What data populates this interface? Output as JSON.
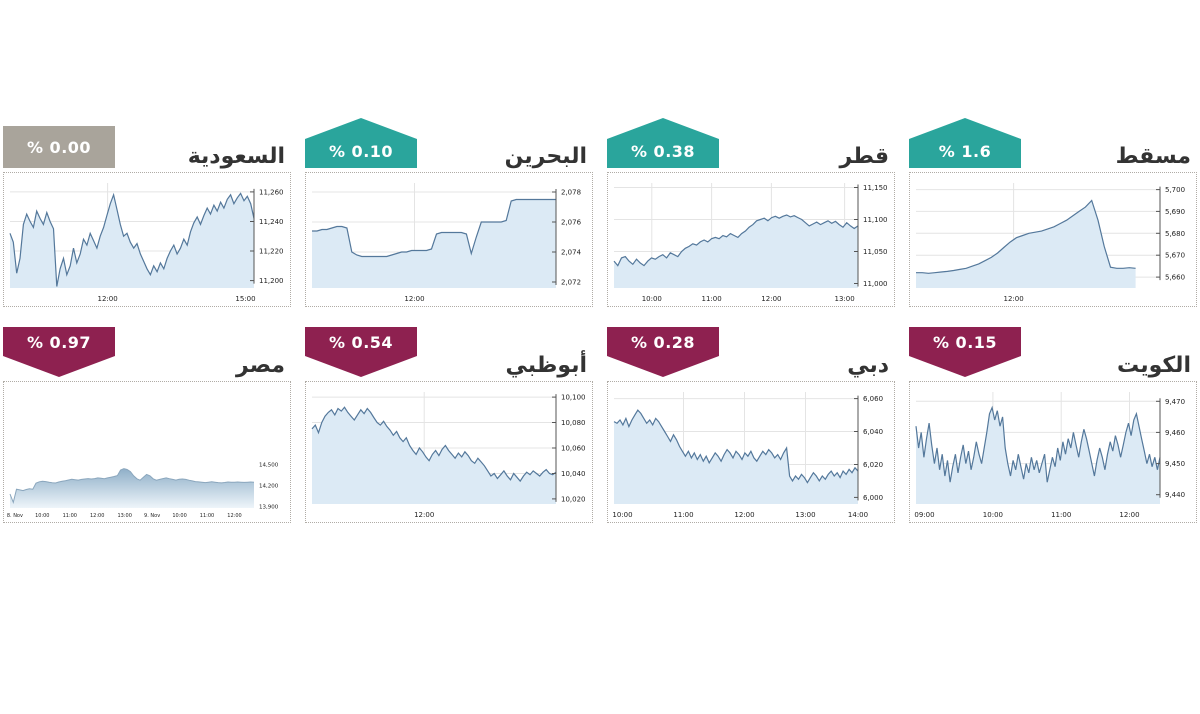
{
  "page": {
    "background": "#ffffff"
  },
  "colors": {
    "up": "#2aa59c",
    "down": "#8e2150",
    "flat": "#a9a49b",
    "line": "#54789b",
    "fill": "#dceaf5",
    "grid": "#e4e4e4",
    "axis": "#555555",
    "tick_label": "#222222",
    "title": "#333333",
    "mountain_line": "#8aa6bd",
    "mountain_fill_top": "#8fafc8",
    "mountain_fill_bottom": "#eef5fa"
  },
  "chart_data": [
    {
      "id": "saudi",
      "title": "السعودية",
      "badge_label": "% 0.00",
      "direction": "flat",
      "type": "area",
      "legend": "none",
      "grid": true,
      "ylim": [
        11195,
        11266
      ],
      "yticks": [
        11260,
        11240,
        11220,
        11200
      ],
      "ytick_labels": [
        "11,260",
        "11,240",
        "11,220",
        "11,200"
      ],
      "xticks": [
        {
          "label": "12:00",
          "pos": 0.4
        },
        {
          "label": "15:00",
          "pos": 0.965
        }
      ],
      "values": [
        11232,
        11226,
        11205,
        11215,
        11238,
        11245,
        11240,
        11236,
        11247,
        11242,
        11238,
        11246,
        11240,
        11235,
        11196,
        11208,
        11215,
        11204,
        11210,
        11222,
        11212,
        11218,
        11228,
        11224,
        11232,
        11227,
        11222,
        11230,
        11236,
        11244,
        11252,
        11258,
        11248,
        11238,
        11230,
        11232,
        11226,
        11222,
        11225,
        11218,
        11213,
        11208,
        11204,
        11210,
        11206,
        11212,
        11208,
        11215,
        11220,
        11224,
        11218,
        11222,
        11228,
        11224,
        11233,
        11239,
        11243,
        11238,
        11244,
        11249,
        11245,
        11251,
        11247,
        11253,
        11249,
        11255,
        11258,
        11252,
        11256,
        11259,
        11254,
        11257,
        11252,
        11242
      ]
    },
    {
      "id": "bahrain",
      "title": "البحرين",
      "badge_label": "% 0.10",
      "direction": "up",
      "type": "area",
      "legend": "none",
      "grid": true,
      "ylim": [
        2071.6,
        2078.6
      ],
      "yticks": [
        2078,
        2076,
        2074,
        2072
      ],
      "ytick_labels": [
        "2,078",
        "2,076",
        "2,074",
        "2,072"
      ],
      "xticks": [
        {
          "label": "12:00",
          "pos": 0.42
        }
      ],
      "values": [
        2075.4,
        2075.4,
        2075.5,
        2075.5,
        2075.6,
        2075.7,
        2075.7,
        2075.6,
        2074.0,
        2073.8,
        2073.7,
        2073.7,
        2073.7,
        2073.7,
        2073.7,
        2073.7,
        2073.8,
        2073.9,
        2074.0,
        2074.0,
        2074.1,
        2074.1,
        2074.1,
        2074.1,
        2074.2,
        2075.2,
        2075.3,
        2075.3,
        2075.3,
        2075.3,
        2075.3,
        2075.2,
        2073.9,
        2075.0,
        2076.0,
        2076.0,
        2076.0,
        2076.0,
        2076.0,
        2076.1,
        2077.4,
        2077.5,
        2077.5,
        2077.5,
        2077.5,
        2077.5,
        2077.5,
        2077.5,
        2077.5,
        2077.5
      ]
    },
    {
      "id": "qatar",
      "title": "قطر",
      "badge_label": "% 0.38",
      "direction": "up",
      "type": "area",
      "legend": "none",
      "grid": true,
      "ylim": [
        10993,
        11157
      ],
      "yticks": [
        11150,
        11100,
        11050,
        11000
      ],
      "ytick_labels": [
        "11,150",
        "11,100",
        "11,050",
        "11,000"
      ],
      "xticks": [
        {
          "label": "10:00",
          "pos": 0.155
        },
        {
          "label": "11:00",
          "pos": 0.4
        },
        {
          "label": "12:00",
          "pos": 0.645
        },
        {
          "label": "13:00",
          "pos": 0.945
        }
      ],
      "values": [
        11035,
        11028,
        11040,
        11042,
        11035,
        11030,
        11038,
        11032,
        11028,
        11035,
        11040,
        11038,
        11042,
        11045,
        11040,
        11048,
        11045,
        11042,
        11050,
        11055,
        11058,
        11062,
        11060,
        11065,
        11068,
        11065,
        11070,
        11072,
        11070,
        11075,
        11073,
        11078,
        11075,
        11072,
        11078,
        11082,
        11088,
        11092,
        11098,
        11100,
        11102,
        11098,
        11103,
        11105,
        11102,
        11105,
        11107,
        11104,
        11106,
        11103,
        11100,
        11095,
        11090,
        11093,
        11096,
        11092,
        11095,
        11098,
        11094,
        11097,
        11092,
        11088,
        11095,
        11090,
        11086,
        11090
      ]
    },
    {
      "id": "muscat",
      "title": "مسقط",
      "badge_label": "% 1.6",
      "direction": "up",
      "type": "area",
      "legend": "none",
      "grid": true,
      "x_end": 0.9,
      "ylim": [
        5655,
        5703
      ],
      "yticks": [
        5700,
        5690,
        5680,
        5670,
        5660
      ],
      "ytick_labels": [
        "5,700",
        "5,690",
        "5,680",
        "5,670",
        "5,660"
      ],
      "xticks": [
        {
          "label": "12:00",
          "pos": 0.4
        }
      ],
      "values": [
        5662,
        5662,
        5661.7,
        5662,
        5662.3,
        5662.6,
        5663,
        5663.5,
        5664,
        5665,
        5666,
        5667.5,
        5669,
        5671,
        5673.5,
        5676,
        5678,
        5679,
        5680,
        5680.5,
        5681,
        5682,
        5683,
        5684.5,
        5686,
        5688,
        5690,
        5692,
        5695,
        5686,
        5674,
        5664.5,
        5664,
        5664,
        5664.3,
        5664
      ]
    },
    {
      "id": "egypt",
      "title": "مصر",
      "badge_label": "% 0.97",
      "direction": "down",
      "type": "area",
      "style": "mountain",
      "legend": "none",
      "grid": false,
      "ylim": [
        13880,
        15600
      ],
      "yticks": [
        14500,
        14200,
        13900
      ],
      "ytick_labels": [
        "14,500",
        "14,200",
        "13,900"
      ],
      "xticks": [
        {
          "label": "8. Nov",
          "pos": 0.02
        },
        {
          "label": "10:00",
          "pos": 0.1325
        },
        {
          "label": "11:00",
          "pos": 0.245
        },
        {
          "label": "12:00",
          "pos": 0.3575
        },
        {
          "label": "13:00",
          "pos": 0.47
        },
        {
          "label": "9. Nov",
          "pos": 0.5825
        },
        {
          "label": "10:00",
          "pos": 0.695
        },
        {
          "label": "11:00",
          "pos": 0.8075
        },
        {
          "label": "12:00",
          "pos": 0.92
        }
      ],
      "values": [
        14080,
        13960,
        14150,
        14140,
        14130,
        14145,
        14155,
        14150,
        14235,
        14255,
        14262,
        14258,
        14248,
        14242,
        14238,
        14252,
        14262,
        14272,
        14282,
        14292,
        14286,
        14280,
        14290,
        14296,
        14302,
        14296,
        14302,
        14312,
        14306,
        14300,
        14312,
        14322,
        14332,
        14345,
        14425,
        14445,
        14432,
        14402,
        14342,
        14298,
        14278,
        14322,
        14362,
        14342,
        14298,
        14278,
        14290,
        14302,
        14312,
        14300,
        14290,
        14280,
        14292,
        14296,
        14290,
        14278,
        14268,
        14258,
        14254,
        14250,
        14244,
        14250,
        14256,
        14250,
        14244,
        14240,
        14246,
        14252,
        14248,
        14250,
        14253,
        14250,
        14247,
        14250,
        14252,
        14250
      ]
    },
    {
      "id": "abudhabi",
      "title": "أبوظبي",
      "badge_label": "% 0.54",
      "direction": "down",
      "type": "area",
      "legend": "none",
      "grid": true,
      "ylim": [
        10016,
        10104
      ],
      "yticks": [
        10100,
        10080,
        10060,
        10040,
        10020
      ],
      "ytick_labels": [
        "10,100",
        "10,080",
        "10,060",
        "10,040",
        "10,020"
      ],
      "xticks": [
        {
          "label": "12:00",
          "pos": 0.46
        }
      ],
      "values": [
        10075,
        10078,
        10072,
        10080,
        10085,
        10088,
        10090,
        10086,
        10091,
        10089,
        10092,
        10088,
        10085,
        10082,
        10086,
        10090,
        10087,
        10091,
        10088,
        10084,
        10080,
        10078,
        10081,
        10077,
        10074,
        10070,
        10073,
        10068,
        10065,
        10068,
        10062,
        10058,
        10055,
        10060,
        10057,
        10053,
        10050,
        10055,
        10058,
        10054,
        10059,
        10062,
        10058,
        10055,
        10052,
        10056,
        10053,
        10057,
        10054,
        10050,
        10048,
        10052,
        10049,
        10046,
        10042,
        10038,
        10040,
        10036,
        10039,
        10042,
        10038,
        10035,
        10040,
        10037,
        10034,
        10038,
        10041,
        10039,
        10042,
        10040,
        10038,
        10041,
        10043,
        10040,
        10039,
        10041
      ]
    },
    {
      "id": "dubai",
      "title": "دبي",
      "badge_label": "% 0.28",
      "direction": "down",
      "type": "area",
      "legend": "none",
      "grid": true,
      "ylim": [
        5996,
        6064
      ],
      "yticks": [
        6060,
        6040,
        6020,
        6000
      ],
      "ytick_labels": [
        "6,060",
        "6,040",
        "6,020",
        "6,000"
      ],
      "xticks": [
        {
          "label": "10:00",
          "pos": 0.035
        },
        {
          "label": "11:00",
          "pos": 0.285
        },
        {
          "label": "12:00",
          "pos": 0.535
        },
        {
          "label": "13:00",
          "pos": 0.785
        },
        {
          "label": "14:00",
          "pos": 1.0
        }
      ],
      "values": [
        6046,
        6045,
        6047,
        6044,
        6048,
        6043,
        6047,
        6050,
        6053,
        6051,
        6048,
        6045,
        6047,
        6044,
        6048,
        6046,
        6043,
        6040,
        6037,
        6034,
        6038,
        6035,
        6031,
        6028,
        6025,
        6028,
        6024,
        6027,
        6023,
        6026,
        6022,
        6025,
        6021,
        6024,
        6027,
        6025,
        6022,
        6026,
        6029,
        6027,
        6024,
        6028,
        6026,
        6023,
        6027,
        6025,
        6028,
        6024,
        6022,
        6025,
        6028,
        6026,
        6029,
        6027,
        6024,
        6026,
        6023,
        6027,
        6030,
        6013,
        6010,
        6013,
        6011,
        6014,
        6012,
        6009,
        6012,
        6015,
        6013,
        6010,
        6013,
        6011,
        6014,
        6016,
        6013,
        6015,
        6012,
        6016,
        6014,
        6017,
        6015,
        6018,
        6016
      ]
    },
    {
      "id": "kuwait",
      "title": "الكويت",
      "badge_label": "% 0.15",
      "direction": "down",
      "type": "area",
      "legend": "none",
      "grid": true,
      "ylim": [
        9437,
        9473
      ],
      "yticks": [
        9470,
        9460,
        9450,
        9440
      ],
      "ytick_labels": [
        "9,470",
        "9,460",
        "9,450",
        "9,440"
      ],
      "xticks": [
        {
          "label": "09:00",
          "pos": 0.035
        },
        {
          "label": "10:00",
          "pos": 0.315
        },
        {
          "label": "11:00",
          "pos": 0.595
        },
        {
          "label": "12:00",
          "pos": 0.875
        }
      ],
      "values": [
        9462,
        9455,
        9460,
        9452,
        9458,
        9463,
        9456,
        9450,
        9455,
        9448,
        9453,
        9446,
        9451,
        9444,
        9449,
        9453,
        9447,
        9452,
        9456,
        9450,
        9454,
        9448,
        9452,
        9457,
        9453,
        9450,
        9455,
        9460,
        9466,
        9468,
        9464,
        9467,
        9462,
        9465,
        9455,
        9450,
        9446,
        9451,
        9448,
        9453,
        9449,
        9445,
        9450,
        9447,
        9452,
        9448,
        9451,
        9447,
        9450,
        9453,
        9444,
        9448,
        9452,
        9449,
        9455,
        9451,
        9457,
        9453,
        9458,
        9455,
        9460,
        9456,
        9452,
        9457,
        9461,
        9458,
        9454,
        9450,
        9446,
        9451,
        9455,
        9452,
        9448,
        9453,
        9457,
        9454,
        9459,
        9456,
        9452,
        9456,
        9460,
        9463,
        9459,
        9464,
        9466,
        9462,
        9458,
        9454,
        9450,
        9453,
        9449,
        9452,
        9448,
        9452
      ]
    }
  ]
}
